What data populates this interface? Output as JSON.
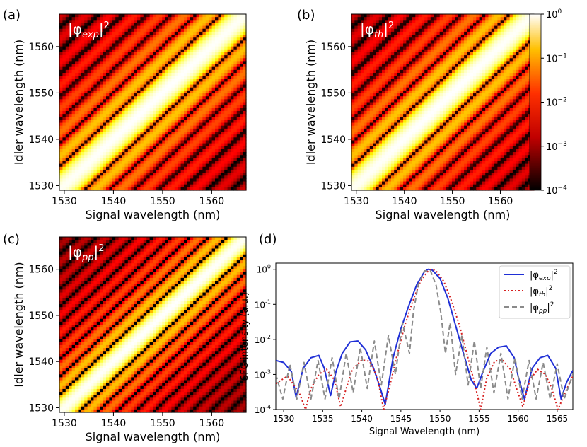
{
  "chart_data": [
    {
      "panel": "(a)",
      "type": "heatmap",
      "label": "|φ_exp|²",
      "xlabel": "Signal wavelength (nm)",
      "ylabel": "Idler wavelength (nm)",
      "xlim": [
        1529,
        1567
      ],
      "ylim": [
        1529,
        1567
      ],
      "xticks": [
        1530,
        1540,
        1550,
        1560
      ],
      "yticks": [
        1530,
        1540,
        1550,
        1560
      ],
      "colormap": "hot",
      "norm": "log",
      "ridge": {
        "signal_center": 1548.5,
        "idler_center": 1548.5,
        "tilt": 0.96,
        "sidelobe_period_nm": 5.0
      }
    },
    {
      "panel": "(b)",
      "type": "heatmap",
      "label": "|φ_th|²",
      "xlabel": "Signal wavelength (nm)",
      "ylabel": "Idler wavelength (nm)",
      "xlim": [
        1529,
        1567
      ],
      "ylim": [
        1529,
        1567
      ],
      "xticks": [
        1530,
        1540,
        1550,
        1560
      ],
      "yticks": [
        1530,
        1540,
        1550,
        1560
      ],
      "colormap": "hot",
      "norm": "log",
      "ridge": {
        "signal_center": 1548.5,
        "idler_center": 1548.5,
        "tilt": 0.96,
        "sidelobe_period_nm": 5.0
      }
    },
    {
      "panel": "(c)",
      "type": "heatmap",
      "label": "|φ_pp|²",
      "xlabel": "Signal wavelength (nm)",
      "ylabel": "Idler wavelength (nm)",
      "xlim": [
        1529,
        1567
      ],
      "ylim": [
        1529,
        1567
      ],
      "xticks": [
        1530,
        1540,
        1550,
        1560
      ],
      "yticks": [
        1530,
        1540,
        1550,
        1560
      ],
      "colormap": "hot",
      "norm": "log",
      "ridge": {
        "signal_center": 1548.5,
        "idler_center": 1548.5,
        "tilt": 0.96,
        "sidelobe_period_nm": 3.8
      }
    },
    {
      "panel": "(d)",
      "type": "line",
      "yscale": "log",
      "xlabel": "Signal Wavelength (nm)",
      "ylabel": "SFG intensity (a.u.)",
      "xlim": [
        1529,
        1567
      ],
      "ylim": [
        0.0001,
        1.5
      ],
      "xticks": [
        1530,
        1535,
        1540,
        1545,
        1550,
        1555,
        1560,
        1565
      ],
      "yticks": [
        {
          "value": 1,
          "label": "10^0"
        },
        {
          "value": 0.1,
          "label": "10^-1"
        },
        {
          "value": 0.01,
          "label": "10^-2"
        },
        {
          "value": 0.001,
          "label": "10^-3"
        },
        {
          "value": 0.0001,
          "label": "10^-4"
        }
      ],
      "legend_position": "top-right",
      "series": [
        {
          "name": "|φ_exp|²",
          "color": "#1f2fd6",
          "dash": "solid",
          "x": [
            1529,
            1530,
            1531,
            1531.6,
            1532.5,
            1533.5,
            1534.5,
            1535.2,
            1536.0,
            1536.7,
            1537.5,
            1538.5,
            1539.5,
            1540.5,
            1541.5,
            1542.3,
            1543.0,
            1544.0,
            1545.0,
            1546.0,
            1547.0,
            1548.0,
            1548.5,
            1549.0,
            1550.0,
            1551.0,
            1552.0,
            1553.0,
            1554.0,
            1554.7,
            1555.5,
            1556.5,
            1557.5,
            1558.5,
            1559.5,
            1560.0,
            1560.8,
            1561.8,
            1562.8,
            1563.8,
            1564.8,
            1565.5,
            1566.2,
            1567.0
          ],
          "y": [
            0.0025,
            0.0022,
            0.0012,
            0.00022,
            0.0015,
            0.003,
            0.0035,
            0.0015,
            0.00025,
            0.0012,
            0.004,
            0.0085,
            0.009,
            0.005,
            0.0015,
            0.00045,
            0.00014,
            0.003,
            0.02,
            0.09,
            0.35,
            0.85,
            1.0,
            0.95,
            0.55,
            0.15,
            0.025,
            0.004,
            0.0007,
            0.0004,
            0.0012,
            0.004,
            0.006,
            0.0065,
            0.003,
            0.0009,
            0.0002,
            0.0015,
            0.003,
            0.0035,
            0.0015,
            0.0002,
            0.0006,
            0.0013
          ]
        },
        {
          "name": "|φ_th|²",
          "color": "#d62020",
          "dash": "dotted",
          "x": [
            1529,
            1530.5,
            1532,
            1532.8,
            1533.5,
            1534.5,
            1535.5,
            1536.5,
            1537.3,
            1538.0,
            1538.8,
            1540.0,
            1541.0,
            1542.0,
            1542.8,
            1543.6,
            1544.5,
            1545.5,
            1546.5,
            1547.5,
            1548.5,
            1549.0,
            1549.5,
            1550.5,
            1551.5,
            1552.5,
            1553.5,
            1554.5,
            1555.2,
            1556.0,
            1557.0,
            1558.0,
            1559.0,
            1559.8,
            1560.6,
            1561.5,
            1562.5,
            1563.5,
            1564.3,
            1565.1,
            1566.0,
            1567.0
          ],
          "y": [
            0.00055,
            0.0009,
            0.0003,
            0.0001,
            0.0004,
            0.001,
            0.0014,
            0.0007,
            0.00012,
            0.0004,
            0.0014,
            0.0026,
            0.0024,
            0.0008,
            0.0001,
            0.0005,
            0.0035,
            0.025,
            0.12,
            0.45,
            0.9,
            1.0,
            0.9,
            0.45,
            0.12,
            0.025,
            0.0035,
            0.0005,
            0.0001,
            0.0008,
            0.0024,
            0.0026,
            0.0014,
            0.0004,
            0.00012,
            0.0007,
            0.0014,
            0.001,
            0.0004,
            0.0001,
            0.0003,
            0.0009
          ]
        },
        {
          "name": "|φ_pp|²",
          "color": "#8a8a8a",
          "dash": "dashed",
          "x": [
            1529,
            1529.9,
            1530.8,
            1531.7,
            1532.6,
            1533.5,
            1534.4,
            1535.3,
            1536.2,
            1537.1,
            1538.0,
            1538.9,
            1539.8,
            1540.7,
            1541.6,
            1542.5,
            1543.4,
            1544.3,
            1545.2,
            1546.1,
            1546.6,
            1547.2,
            1548.0,
            1548.8,
            1549.5,
            1550.1,
            1550.7,
            1551.3,
            1552.0,
            1552.8,
            1553.6,
            1554.4,
            1555.2,
            1556.0,
            1556.9,
            1557.8,
            1558.7,
            1559.6,
            1560.5,
            1561.4,
            1562.3,
            1563.2,
            1564.1,
            1565.0,
            1565.9,
            1567.0
          ],
          "y": [
            0.001,
            0.0002,
            0.002,
            0.0002,
            0.0022,
            0.0002,
            0.0025,
            0.0002,
            0.003,
            0.0002,
            0.004,
            0.0003,
            0.006,
            0.0004,
            0.009,
            0.0005,
            0.013,
            0.001,
            0.03,
            0.004,
            0.06,
            0.35,
            0.9,
            0.9,
            0.35,
            0.06,
            0.004,
            0.03,
            0.001,
            0.013,
            0.0005,
            0.009,
            0.0004,
            0.006,
            0.0003,
            0.004,
            0.0002,
            0.003,
            0.0002,
            0.0025,
            0.0002,
            0.0022,
            0.0002,
            0.002,
            0.0002,
            0.001
          ]
        }
      ]
    }
  ],
  "panel_labels": {
    "a": "(a)",
    "b": "(b)",
    "c": "(c)",
    "d": "(d)"
  },
  "colorbar": {
    "ticks": [
      {
        "value": 1,
        "base": "10",
        "exp": "0"
      },
      {
        "value": 0.1,
        "base": "10",
        "exp": "−1"
      },
      {
        "value": 0.01,
        "base": "10",
        "exp": "−2"
      },
      {
        "value": 0.001,
        "base": "10",
        "exp": "−3"
      },
      {
        "value": 0.0001,
        "base": "10",
        "exp": "−4"
      }
    ]
  },
  "annot": {
    "a": {
      "main": "|φ",
      "sub": "exp",
      "end": "|",
      "sup": "2"
    },
    "b": {
      "main": "|φ",
      "sub": "th",
      "end": "|",
      "sup": "2"
    },
    "c": {
      "main": "|φ",
      "sub": "pp",
      "end": "|",
      "sup": "2"
    }
  },
  "legend": [
    {
      "main": "|φ",
      "sub": "exp",
      "end": "|",
      "sup": "2"
    },
    {
      "main": "|φ",
      "sub": "th",
      "end": "|",
      "sup": "2"
    },
    {
      "main": "|φ",
      "sub": "pp",
      "end": "|",
      "sup": "2"
    }
  ],
  "d_ytick_labels": [
    {
      "base": "10",
      "exp": "0"
    },
    {
      "base": "10",
      "exp": "-1"
    },
    {
      "base": "10",
      "exp": "-2"
    },
    {
      "base": "10",
      "exp": "-3"
    },
    {
      "base": "10",
      "exp": "-4"
    }
  ]
}
